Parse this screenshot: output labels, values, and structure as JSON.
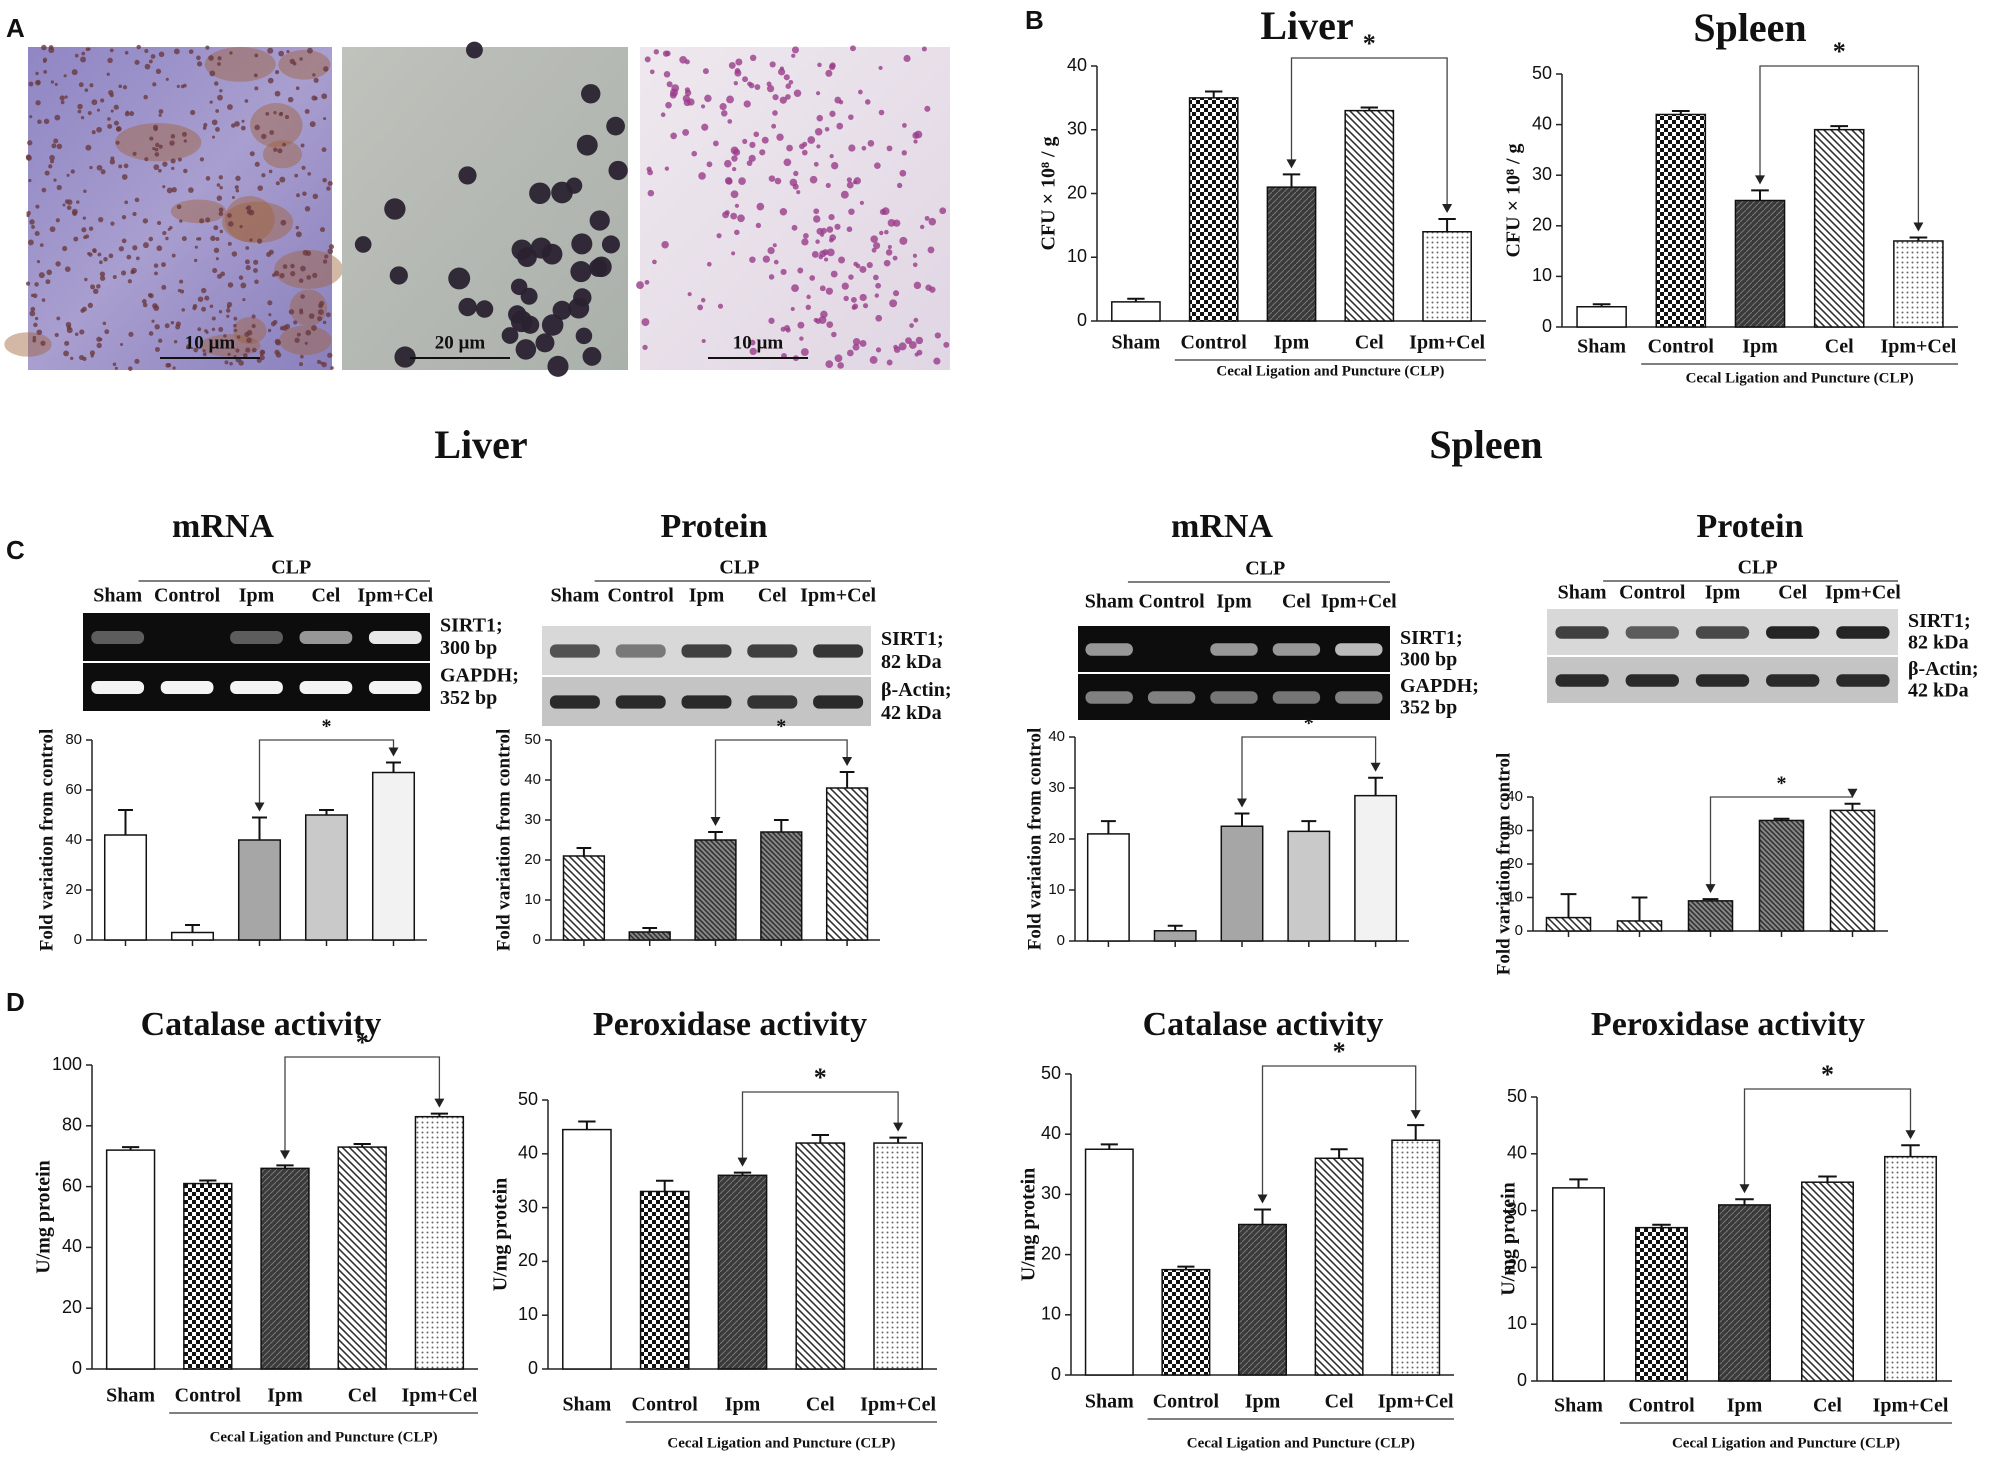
{
  "panel_labels": [
    "A",
    "B",
    "C",
    "D"
  ],
  "micrographs": [
    {
      "scale": "10 µm"
    },
    {
      "scale": "20 µm"
    },
    {
      "scale": "10 µm"
    }
  ],
  "section_titles": [
    "Liver",
    "Spleen"
  ],
  "blots": [
    {
      "title": "mRNA",
      "group": "CLP",
      "lanes": [
        "Sham",
        "Control",
        "Ipm",
        "Cel",
        "Ipm+Cel"
      ],
      "bands": [
        [
          "SIRT1;",
          "300 bp"
        ],
        [
          "GAPDH;",
          "352 bp"
        ]
      ]
    },
    {
      "title": "Protein",
      "group": "CLP",
      "lanes": [
        "Sham",
        "Control",
        "Ipm",
        "Cel",
        "Ipm+Cel"
      ],
      "bands": [
        [
          "SIRT1;",
          "82 kDa"
        ],
        [
          "β-Actin;",
          "42 kDa"
        ]
      ]
    },
    {
      "title": "mRNA",
      "group": "CLP",
      "lanes": [
        "Sham",
        "Control",
        "Ipm",
        "Cel",
        "Ipm+Cel"
      ],
      "bands": [
        [
          "SIRT1;",
          "300 bp"
        ],
        [
          "GAPDH;",
          "352 bp"
        ]
      ]
    },
    {
      "title": "Protein",
      "group": "CLP",
      "lanes": [
        "Sham",
        "Control",
        "Ipm",
        "Cel",
        "Ipm+Cel"
      ],
      "bands": [
        [
          "SIRT1;",
          "82 kDa"
        ],
        [
          "β-Actin;",
          "42 kDa"
        ]
      ]
    }
  ],
  "chart_data": [
    {
      "type": "bar",
      "title": "Liver",
      "y_label": "CFU × 10⁸ / g",
      "categories": [
        "Sham",
        "Control",
        "Ipm",
        "Cel",
        "Ipm+Cel"
      ],
      "group_label": "Cecal Ligation and Puncture (CLP)",
      "values": [
        3,
        35,
        21,
        33,
        14
      ],
      "errors": [
        0.5,
        1,
        2,
        0.5,
        2
      ],
      "ylim": [
        0,
        40
      ],
      "yticks": [
        0,
        10,
        20,
        30,
        40
      ],
      "bar_styles": [
        "white",
        "checker",
        "dark",
        "hatch",
        "dots"
      ],
      "annotation": "*"
    },
    {
      "type": "bar",
      "title": "Spleen",
      "y_label": "CFU × 10⁸ / g",
      "categories": [
        "Sham",
        "Control",
        "Ipm",
        "Cel",
        "Ipm+Cel"
      ],
      "group_label": "Cecal Ligation and Puncture (CLP)",
      "values": [
        4,
        42,
        25,
        39,
        17
      ],
      "errors": [
        0.5,
        0.7,
        2,
        0.7,
        0.7
      ],
      "ylim": [
        0,
        50
      ],
      "yticks": [
        0,
        10,
        20,
        30,
        40,
        50
      ],
      "bar_styles": [
        "white",
        "checker",
        "dark",
        "hatch",
        "dots"
      ],
      "annotation": "*"
    },
    {
      "type": "bar",
      "y_label": "Fold variation from control",
      "values": [
        42,
        3,
        40,
        50,
        67
      ],
      "errors": [
        10,
        3,
        9,
        2,
        4
      ],
      "ylim": [
        0,
        80
      ],
      "yticks": [
        0,
        20,
        40,
        60,
        80
      ],
      "bar_styles": [
        "white",
        "white",
        "gray",
        "lightgray",
        "pale"
      ],
      "annotation": "*"
    },
    {
      "type": "bar",
      "y_label": "Fold variation from control",
      "values": [
        21,
        2,
        25,
        27,
        38
      ],
      "errors": [
        2,
        1,
        2,
        3,
        4
      ],
      "ylim": [
        0,
        50
      ],
      "yticks": [
        0,
        10,
        20,
        30,
        40,
        50
      ],
      "bar_styles": [
        "hatch",
        "hatchdark",
        "hatchdark",
        "hatchdark",
        "hatch"
      ],
      "annotation": "*"
    },
    {
      "type": "bar",
      "y_label": "Fold variation from control",
      "values": [
        21,
        2,
        22.5,
        21.5,
        28.5
      ],
      "errors": [
        2.5,
        1,
        2.5,
        2,
        3.5
      ],
      "ylim": [
        0,
        40
      ],
      "yticks": [
        0,
        10,
        20,
        30,
        40
      ],
      "bar_styles": [
        "white",
        "gray",
        "gray",
        "lightgray",
        "pale"
      ],
      "annotation": "*"
    },
    {
      "type": "bar",
      "y_label": "Fold variation from control",
      "values": [
        4,
        3,
        9,
        33,
        36
      ],
      "errors": [
        7,
        7,
        0.5,
        0.5,
        2
      ],
      "ylim": [
        0,
        40
      ],
      "yticks": [
        0,
        10,
        20,
        30,
        40
      ],
      "bar_styles": [
        "hatch",
        "hatch",
        "hatchdark",
        "hatchdark",
        "hatch"
      ],
      "annotation": "*"
    },
    {
      "type": "bar",
      "title": "Catalase activity",
      "y_label": "U/mg protein",
      "categories": [
        "Sham",
        "Control",
        "Ipm",
        "Cel",
        "Ipm+Cel"
      ],
      "group_label": "Cecal Ligation and Puncture (CLP)",
      "values": [
        72,
        61,
        66,
        73,
        83
      ],
      "errors": [
        1,
        1,
        1,
        1,
        1
      ],
      "ylim": [
        0,
        100
      ],
      "yticks": [
        0,
        20,
        40,
        60,
        80,
        100
      ],
      "bar_styles": [
        "white",
        "checker",
        "dark",
        "hatch",
        "dots"
      ],
      "annotation": "*"
    },
    {
      "type": "bar",
      "title": "Peroxidase activity",
      "y_label": "U/mg protein",
      "categories": [
        "Sham",
        "Control",
        "Ipm",
        "Cel",
        "Ipm+Cel"
      ],
      "group_label": "Cecal Ligation and Puncture (CLP)",
      "values": [
        44.5,
        33,
        36,
        42,
        42
      ],
      "errors": [
        1.5,
        2,
        0.5,
        1.5,
        1
      ],
      "ylim": [
        0,
        50
      ],
      "yticks": [
        0,
        10,
        20,
        30,
        40,
        50
      ],
      "bar_styles": [
        "white",
        "checker",
        "dark",
        "hatch",
        "dots"
      ],
      "annotation": "*"
    },
    {
      "type": "bar",
      "title": "Catalase activity",
      "y_label": "U/mg protein",
      "categories": [
        "Sham",
        "Control",
        "Ipm",
        "Cel",
        "Ipm+Cel"
      ],
      "group_label": "Cecal Ligation and Puncture (CLP)",
      "values": [
        37.5,
        17.5,
        25,
        36,
        39
      ],
      "errors": [
        0.8,
        0.5,
        2.5,
        1.5,
        2.5
      ],
      "ylim": [
        0,
        50
      ],
      "yticks": [
        0,
        10,
        20,
        30,
        40,
        50
      ],
      "bar_styles": [
        "white",
        "checker",
        "dark",
        "hatch",
        "dots"
      ],
      "annotation": "*"
    },
    {
      "type": "bar",
      "title": "Peroxidase activity",
      "y_label": "U/mg protein",
      "categories": [
        "Sham",
        "Control",
        "Ipm",
        "Cel",
        "Ipm+Cel"
      ],
      "group_label": "Cecal Ligation and Puncture (CLP)",
      "values": [
        34,
        27,
        31,
        35,
        39.5
      ],
      "errors": [
        1.5,
        0.5,
        1,
        1,
        2
      ],
      "ylim": [
        0,
        50
      ],
      "yticks": [
        0,
        10,
        20,
        30,
        40,
        50
      ],
      "bar_styles": [
        "white",
        "checker",
        "dark",
        "hatch",
        "dots"
      ],
      "annotation": "*"
    }
  ]
}
